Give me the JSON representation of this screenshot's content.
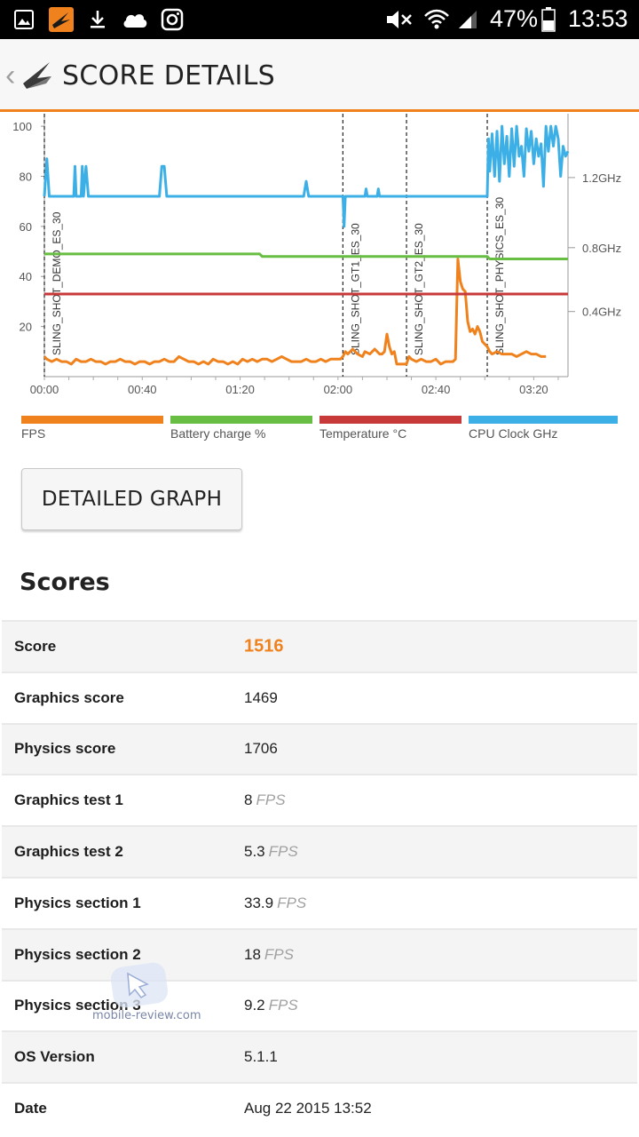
{
  "status_bar": {
    "battery_percent": "47%",
    "time": "13:53",
    "left_icons": [
      "gallery-icon",
      "3dmark-icon",
      "download-icon",
      "cloud-icon",
      "instagram-icon"
    ],
    "right_icons": [
      "mute-icon",
      "wifi-icon",
      "signal-icon",
      "battery-icon"
    ]
  },
  "app_bar": {
    "title": "SCORE DETAILS"
  },
  "chart_data": {
    "type": "line",
    "x_tick_labels": [
      "00:00",
      "00:40",
      "01:20",
      "02:00",
      "02:40",
      "03:20"
    ],
    "y_left_ticks": [
      "100",
      "80",
      "60",
      "40",
      "20"
    ],
    "y_left_range": [
      0,
      105
    ],
    "y_right_ticks": [
      "1.2GHz",
      "0.8GHz",
      "0.4GHz"
    ],
    "test_markers": [
      {
        "label": "SLING_SHOT_DEMO_ES_30",
        "t": 0
      },
      {
        "label": "SLING_SHOT_GT1_ES_30",
        "t": 122
      },
      {
        "label": "SLING_SHOT_GT2_ES_30",
        "t": 148
      },
      {
        "label": "SLING_SHOT_PHYSICS_ES_30",
        "t": 181
      }
    ],
    "x_range_seconds": [
      0,
      214
    ],
    "series": [
      {
        "name": "FPS",
        "color": "#f0821e",
        "points": [
          [
            0,
            8
          ],
          [
            1,
            7
          ],
          [
            3,
            6
          ],
          [
            5,
            7
          ],
          [
            7,
            6
          ],
          [
            9,
            6
          ],
          [
            11,
            5
          ],
          [
            13,
            7
          ],
          [
            15,
            6
          ],
          [
            17,
            6
          ],
          [
            19,
            7
          ],
          [
            21,
            6
          ],
          [
            23,
            6
          ],
          [
            25,
            5
          ],
          [
            27,
            6
          ],
          [
            29,
            6
          ],
          [
            31,
            7
          ],
          [
            33,
            6
          ],
          [
            35,
            6
          ],
          [
            37,
            5
          ],
          [
            39,
            6
          ],
          [
            41,
            6
          ],
          [
            43,
            5
          ],
          [
            45,
            6
          ],
          [
            47,
            6
          ],
          [
            49,
            7
          ],
          [
            51,
            6
          ],
          [
            53,
            6
          ],
          [
            55,
            8
          ],
          [
            57,
            7
          ],
          [
            59,
            6
          ],
          [
            61,
            6
          ],
          [
            63,
            5
          ],
          [
            65,
            6
          ],
          [
            67,
            5
          ],
          [
            69,
            7
          ],
          [
            71,
            6
          ],
          [
            73,
            6
          ],
          [
            75,
            5
          ],
          [
            77,
            6
          ],
          [
            79,
            5
          ],
          [
            81,
            7
          ],
          [
            83,
            6
          ],
          [
            85,
            7
          ],
          [
            87,
            6
          ],
          [
            89,
            7
          ],
          [
            91,
            7
          ],
          [
            93,
            6
          ],
          [
            95,
            7
          ],
          [
            97,
            8
          ],
          [
            99,
            7
          ],
          [
            101,
            6
          ],
          [
            103,
            6
          ],
          [
            105,
            6
          ],
          [
            107,
            7
          ],
          [
            109,
            6
          ],
          [
            111,
            6
          ],
          [
            113,
            7
          ],
          [
            115,
            6
          ],
          [
            117,
            7
          ],
          [
            119,
            7
          ],
          [
            121,
            7
          ],
          [
            122,
            8
          ],
          [
            123,
            10
          ],
          [
            124,
            9
          ],
          [
            126,
            11
          ],
          [
            128,
            9
          ],
          [
            130,
            8
          ],
          [
            131,
            10
          ],
          [
            133,
            9
          ],
          [
            135,
            11
          ],
          [
            137,
            9
          ],
          [
            138,
            9
          ],
          [
            139,
            10
          ],
          [
            140,
            17
          ],
          [
            141,
            12
          ],
          [
            142,
            9
          ],
          [
            143,
            10
          ],
          [
            144,
            5
          ],
          [
            146,
            5
          ],
          [
            148,
            5
          ],
          [
            149,
            8
          ],
          [
            150,
            7
          ],
          [
            152,
            6
          ],
          [
            154,
            7
          ],
          [
            156,
            6
          ],
          [
            158,
            6
          ],
          [
            160,
            7
          ],
          [
            162,
            5
          ],
          [
            164,
            6
          ],
          [
            166,
            6
          ],
          [
            167,
            6
          ],
          [
            168,
            7
          ],
          [
            169,
            47
          ],
          [
            170,
            38
          ],
          [
            171,
            35
          ],
          [
            172,
            34
          ],
          [
            173,
            22
          ],
          [
            174,
            18
          ],
          [
            175,
            19
          ],
          [
            176,
            17
          ],
          [
            177,
            20
          ],
          [
            178,
            18
          ],
          [
            179,
            14
          ],
          [
            180,
            13
          ],
          [
            181,
            12
          ],
          [
            182,
            10
          ],
          [
            183,
            9
          ],
          [
            185,
            10
          ],
          [
            187,
            9
          ],
          [
            189,
            9
          ],
          [
            191,
            9
          ],
          [
            193,
            8
          ],
          [
            195,
            9
          ],
          [
            197,
            10
          ],
          [
            199,
            9
          ],
          [
            201,
            9
          ],
          [
            203,
            8
          ],
          [
            205,
            8
          ]
        ]
      },
      {
        "name": "Battery charge %",
        "color": "#67be43",
        "points": [
          [
            0,
            49
          ],
          [
            88,
            49
          ],
          [
            89,
            48
          ],
          [
            181,
            48
          ],
          [
            182,
            47
          ],
          [
            214,
            47
          ]
        ]
      },
      {
        "name": "Temperature °C",
        "color": "#c8393a",
        "points": [
          [
            0,
            33
          ],
          [
            214,
            33
          ]
        ]
      },
      {
        "name": "CPU Clock GHz",
        "color": "#3cb0e6",
        "points": [
          [
            0,
            72
          ],
          [
            1,
            87
          ],
          [
            2,
            72
          ],
          [
            12,
            72
          ],
          [
            12.5,
            84
          ],
          [
            13,
            72
          ],
          [
            15,
            72
          ],
          [
            15.5,
            84
          ],
          [
            16,
            72
          ],
          [
            17,
            84
          ],
          [
            18,
            72
          ],
          [
            47,
            72
          ],
          [
            48,
            84
          ],
          [
            49,
            84
          ],
          [
            50,
            72
          ],
          [
            106,
            72
          ],
          [
            107,
            78
          ],
          [
            108,
            72
          ],
          [
            122,
            72
          ],
          [
            122.5,
            60
          ],
          [
            123,
            72
          ],
          [
            131,
            72
          ],
          [
            131.5,
            75
          ],
          [
            132,
            72
          ],
          [
            136,
            72
          ],
          [
            136.5,
            75
          ],
          [
            137,
            72
          ],
          [
            181,
            72
          ],
          [
            181.5,
            95
          ],
          [
            182,
            82
          ],
          [
            183,
            97
          ],
          [
            184,
            80
          ],
          [
            185,
            98
          ],
          [
            186,
            78
          ],
          [
            187,
            100
          ],
          [
            188,
            85
          ],
          [
            189,
            96
          ],
          [
            190,
            80
          ],
          [
            191,
            99
          ],
          [
            192,
            84
          ],
          [
            193,
            100
          ],
          [
            194,
            88
          ],
          [
            195,
            92
          ],
          [
            196,
            80
          ],
          [
            197,
            99
          ],
          [
            198,
            90
          ],
          [
            199,
            98
          ],
          [
            200,
            85
          ],
          [
            201,
            95
          ],
          [
            202,
            88
          ],
          [
            203,
            93
          ],
          [
            204,
            76
          ],
          [
            205,
            100
          ],
          [
            206,
            90
          ],
          [
            207,
            100
          ],
          [
            208,
            92
          ],
          [
            209,
            100
          ],
          [
            210,
            95
          ],
          [
            211,
            80
          ],
          [
            212,
            92
          ],
          [
            213,
            88
          ],
          [
            214,
            90
          ]
        ]
      }
    ],
    "legend": [
      "FPS",
      "Battery charge %",
      "Temperature °C",
      "CPU Clock GHz"
    ],
    "legend_placement": "bottom",
    "grid": false
  },
  "actions": {
    "detailed_graph_label": "DETAILED GRAPH"
  },
  "scores": {
    "title": "Scores",
    "rows": [
      {
        "label": "Score",
        "value": "1516",
        "unit": ""
      },
      {
        "label": "Graphics score",
        "value": "1469",
        "unit": ""
      },
      {
        "label": "Physics score",
        "value": "1706",
        "unit": ""
      },
      {
        "label": "Graphics test 1",
        "value": "8",
        "unit": "FPS"
      },
      {
        "label": "Graphics test 2",
        "value": "5.3",
        "unit": "FPS"
      },
      {
        "label": "Physics section 1",
        "value": "33.9",
        "unit": "FPS"
      },
      {
        "label": "Physics section 2",
        "value": "18",
        "unit": "FPS"
      },
      {
        "label": "Physics section 3",
        "value": "9.2",
        "unit": "FPS"
      },
      {
        "label": "OS Version",
        "value": "5.1.1",
        "unit": ""
      },
      {
        "label": "Date",
        "value": "Aug 22 2015 13:52",
        "unit": ""
      }
    ]
  },
  "watermark": {
    "text": "mobile-review.com"
  }
}
